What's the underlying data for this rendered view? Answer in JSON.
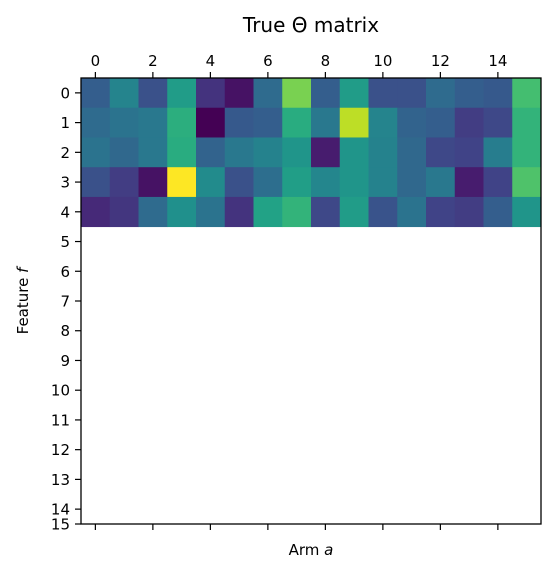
{
  "chart_data": {
    "type": "heatmap",
    "title": "True Θ matrix",
    "xlabel_prefix": "Arm ",
    "xlabel_var": "a",
    "ylabel_prefix": "Feature ",
    "ylabel_var": "f",
    "x_ticks": [
      "0",
      "2",
      "4",
      "6",
      "8",
      "10",
      "12",
      "14"
    ],
    "x_tick_values": [
      0,
      2,
      4,
      6,
      8,
      10,
      12,
      14
    ],
    "x_tick_position": "top",
    "y_ticks": [
      "0",
      "1",
      "2",
      "3",
      "4",
      "5",
      "6",
      "7",
      "8",
      "9",
      "10",
      "11",
      "12",
      "13",
      "14",
      "15"
    ],
    "y_tick_values": [
      0,
      1,
      2,
      3,
      4,
      5,
      6,
      7,
      8,
      9,
      10,
      11,
      12,
      13,
      14,
      15
    ],
    "n_cols": 15,
    "n_rows_axis": 15,
    "colormap": "viridis",
    "vmin": 0,
    "vmax": 1,
    "rows": [
      {
        "feature": 0,
        "values": [
          0.3,
          0.45,
          0.25,
          0.55,
          0.15,
          0.05,
          0.35,
          0.8,
          0.3,
          0.55,
          0.25,
          0.25,
          0.35,
          0.3,
          0.28,
          0.7
        ]
      },
      {
        "feature": 1,
        "values": [
          0.35,
          0.38,
          0.4,
          0.63,
          0.0,
          0.28,
          0.3,
          0.62,
          0.4,
          0.9,
          0.45,
          0.32,
          0.3,
          0.18,
          0.22,
          0.65
        ]
      },
      {
        "feature": 2,
        "values": [
          0.38,
          0.34,
          0.4,
          0.62,
          0.32,
          0.4,
          0.44,
          0.52,
          0.08,
          0.52,
          0.44,
          0.34,
          0.22,
          0.2,
          0.42,
          0.65
        ]
      },
      {
        "feature": 3,
        "values": [
          0.25,
          0.18,
          0.05,
          1.0,
          0.48,
          0.25,
          0.36,
          0.56,
          0.46,
          0.52,
          0.44,
          0.34,
          0.4,
          0.08,
          0.2,
          0.72
        ]
      },
      {
        "feature": 4,
        "values": [
          0.12,
          0.16,
          0.35,
          0.5,
          0.38,
          0.15,
          0.58,
          0.65,
          0.22,
          0.55,
          0.26,
          0.38,
          0.2,
          0.18,
          0.3,
          0.52
        ]
      }
    ],
    "grid": false
  }
}
